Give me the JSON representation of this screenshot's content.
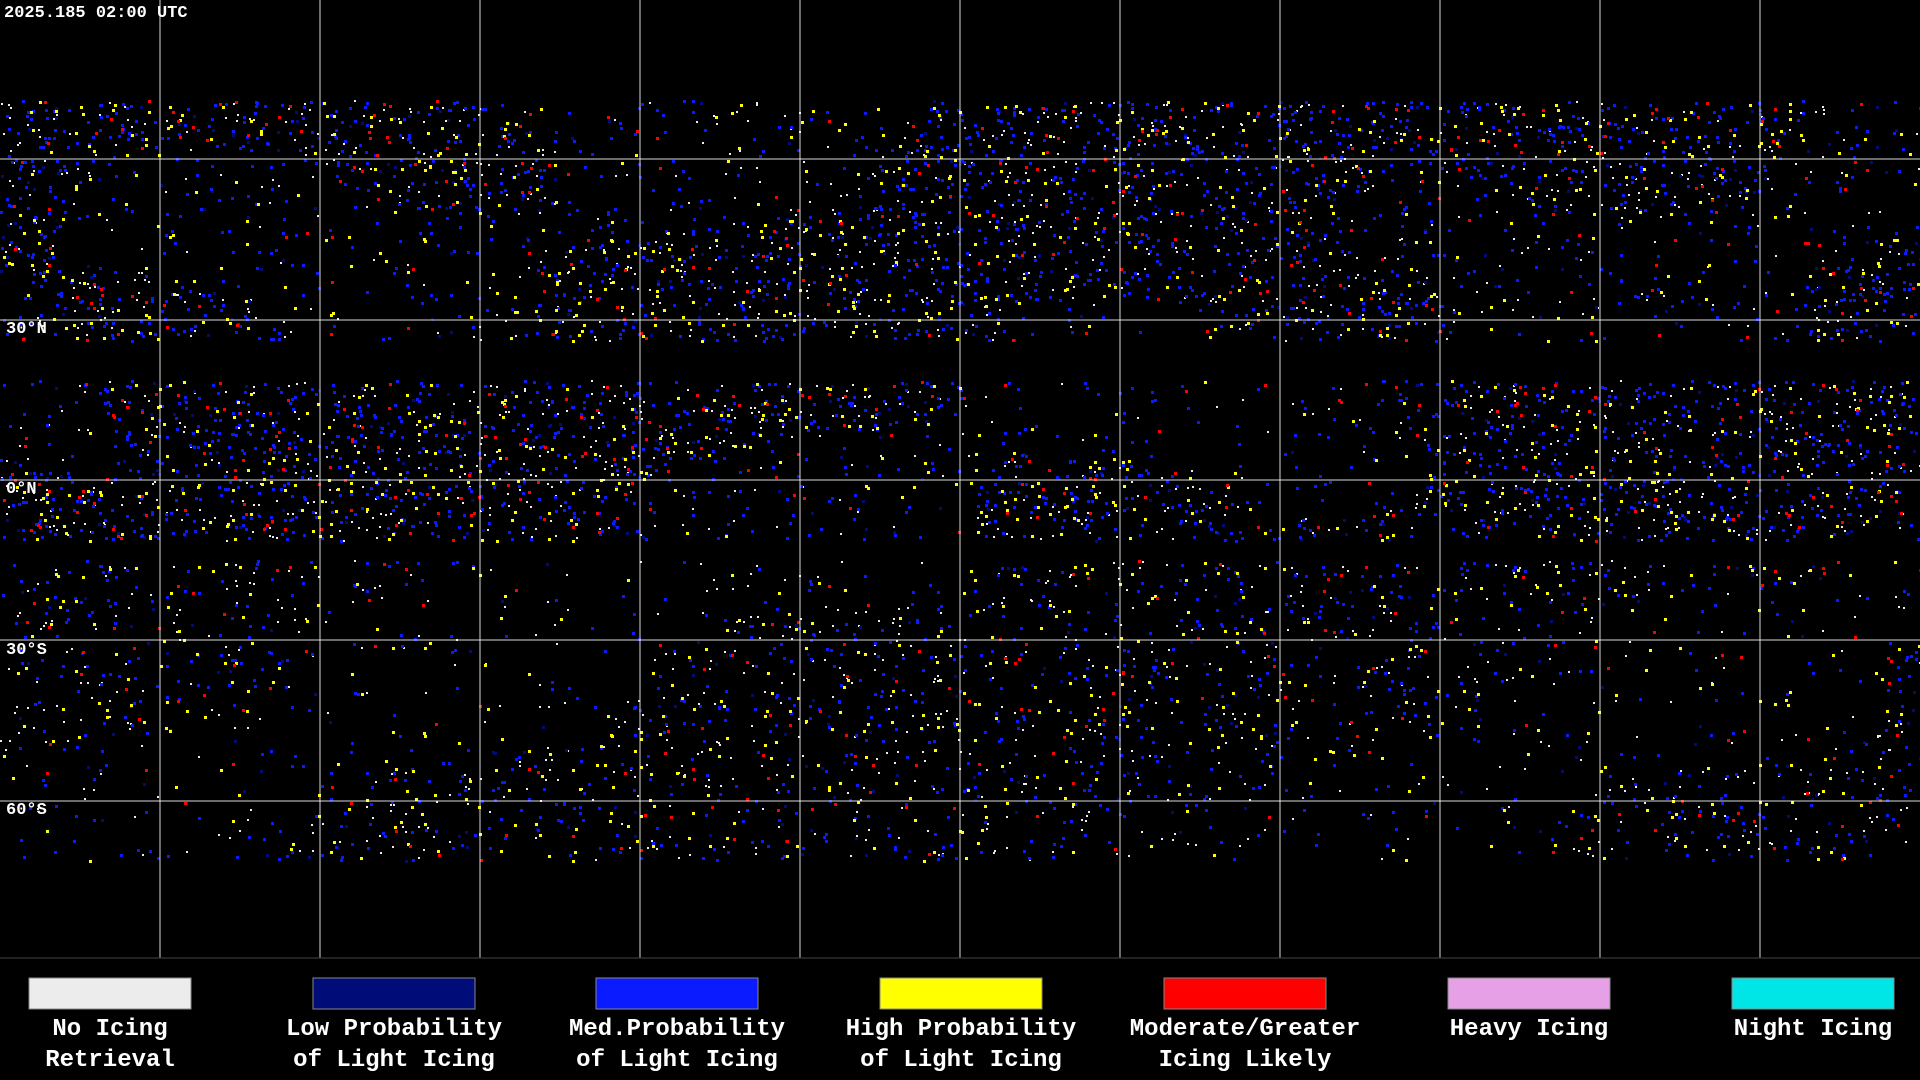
{
  "header": {
    "timestamp": "2025.185 02:00 UTC"
  },
  "map": {
    "lat_labels": [
      "30°N",
      "0°N",
      "30°S",
      "60°S"
    ]
  },
  "legend": [
    {
      "lines": [
        "No Icing",
        "Retrieval"
      ],
      "color": "#ececec"
    },
    {
      "lines": [
        "Low Probability",
        "of Light Icing"
      ],
      "color": "#000c78"
    },
    {
      "lines": [
        "Med.Probability",
        "of Light Icing"
      ],
      "color": "#0a1cff"
    },
    {
      "lines": [
        "High Probability",
        "of Light Icing"
      ],
      "color": "#ffff00"
    },
    {
      "lines": [
        "Moderate/Greater",
        "Icing Likely"
      ],
      "color": "#ff0000"
    },
    {
      "lines": [
        "Heavy Icing"
      ],
      "color": "#e6a0e6"
    },
    {
      "lines": [
        "Night Icing"
      ],
      "color": "#00e6e6"
    }
  ]
}
